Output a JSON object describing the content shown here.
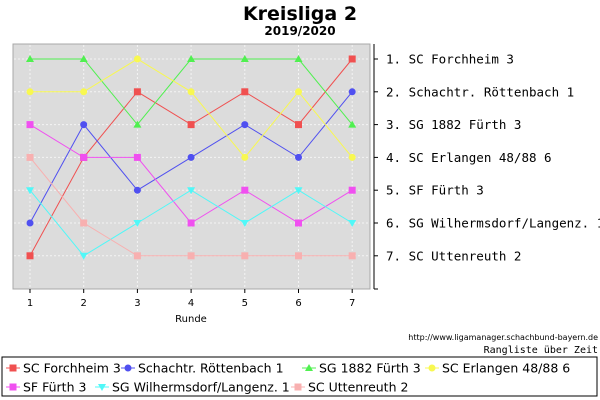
{
  "chart_data": {
    "type": "line",
    "title": "Kreisliga 2",
    "subtitle": "2019/2020",
    "xlabel": "Runde",
    "ylabel": "",
    "x": [
      1,
      2,
      3,
      4,
      5,
      6,
      7
    ],
    "ylim": [
      1,
      7
    ],
    "y_inverted": true,
    "grid": true,
    "legend_placement": "bottom",
    "ranking": [
      "1. SC Forchheim 3",
      "2. Schachtr. Röttenbach 1",
      "3. SG 1882 Fürth 3",
      "4. SC Erlangen 48/88 6",
      "5. SF Fürth 3",
      "6. SG Wilhermsdorf/Langenz. 1",
      "7. SC Uttenreuth 2"
    ],
    "series": [
      {
        "name": "SC Forchheim 3",
        "color": "#f05050",
        "marker": "square",
        "values": [
          7,
          4,
          2,
          3,
          2,
          3,
          1
        ]
      },
      {
        "name": "Schachtr. Röttenbach 1",
        "color": "#5050f0",
        "marker": "circle",
        "values": [
          6,
          3,
          5,
          4,
          3,
          4,
          2
        ]
      },
      {
        "name": "SG 1882 Fürth 3",
        "color": "#50f050",
        "marker": "triangle-up",
        "values": [
          1,
          1,
          3,
          1,
          1,
          1,
          3
        ]
      },
      {
        "name": "SC Erlangen 48/88 6",
        "color": "#f8f850",
        "marker": "circle",
        "values": [
          2,
          2,
          1,
          2,
          4,
          2,
          4
        ]
      },
      {
        "name": "SF Fürth 3",
        "color": "#f050f0",
        "marker": "square",
        "values": [
          3,
          4,
          4,
          6,
          5,
          6,
          5
        ]
      },
      {
        "name": "SG Wilhermsdorf/Langenz. 1",
        "color": "#50f8f8",
        "marker": "triangle-down",
        "values": [
          5,
          7,
          6,
          5,
          6,
          5,
          6
        ]
      },
      {
        "name": "SC Uttenreuth 2",
        "color": "#f8b0b0",
        "marker": "square",
        "values": [
          4,
          6,
          7,
          7,
          7,
          7,
          7
        ]
      }
    ]
  },
  "footer": {
    "url": "http://www.ligamanager.schachbund-bayern.de",
    "caption": "Rangliste über Zeit"
  }
}
